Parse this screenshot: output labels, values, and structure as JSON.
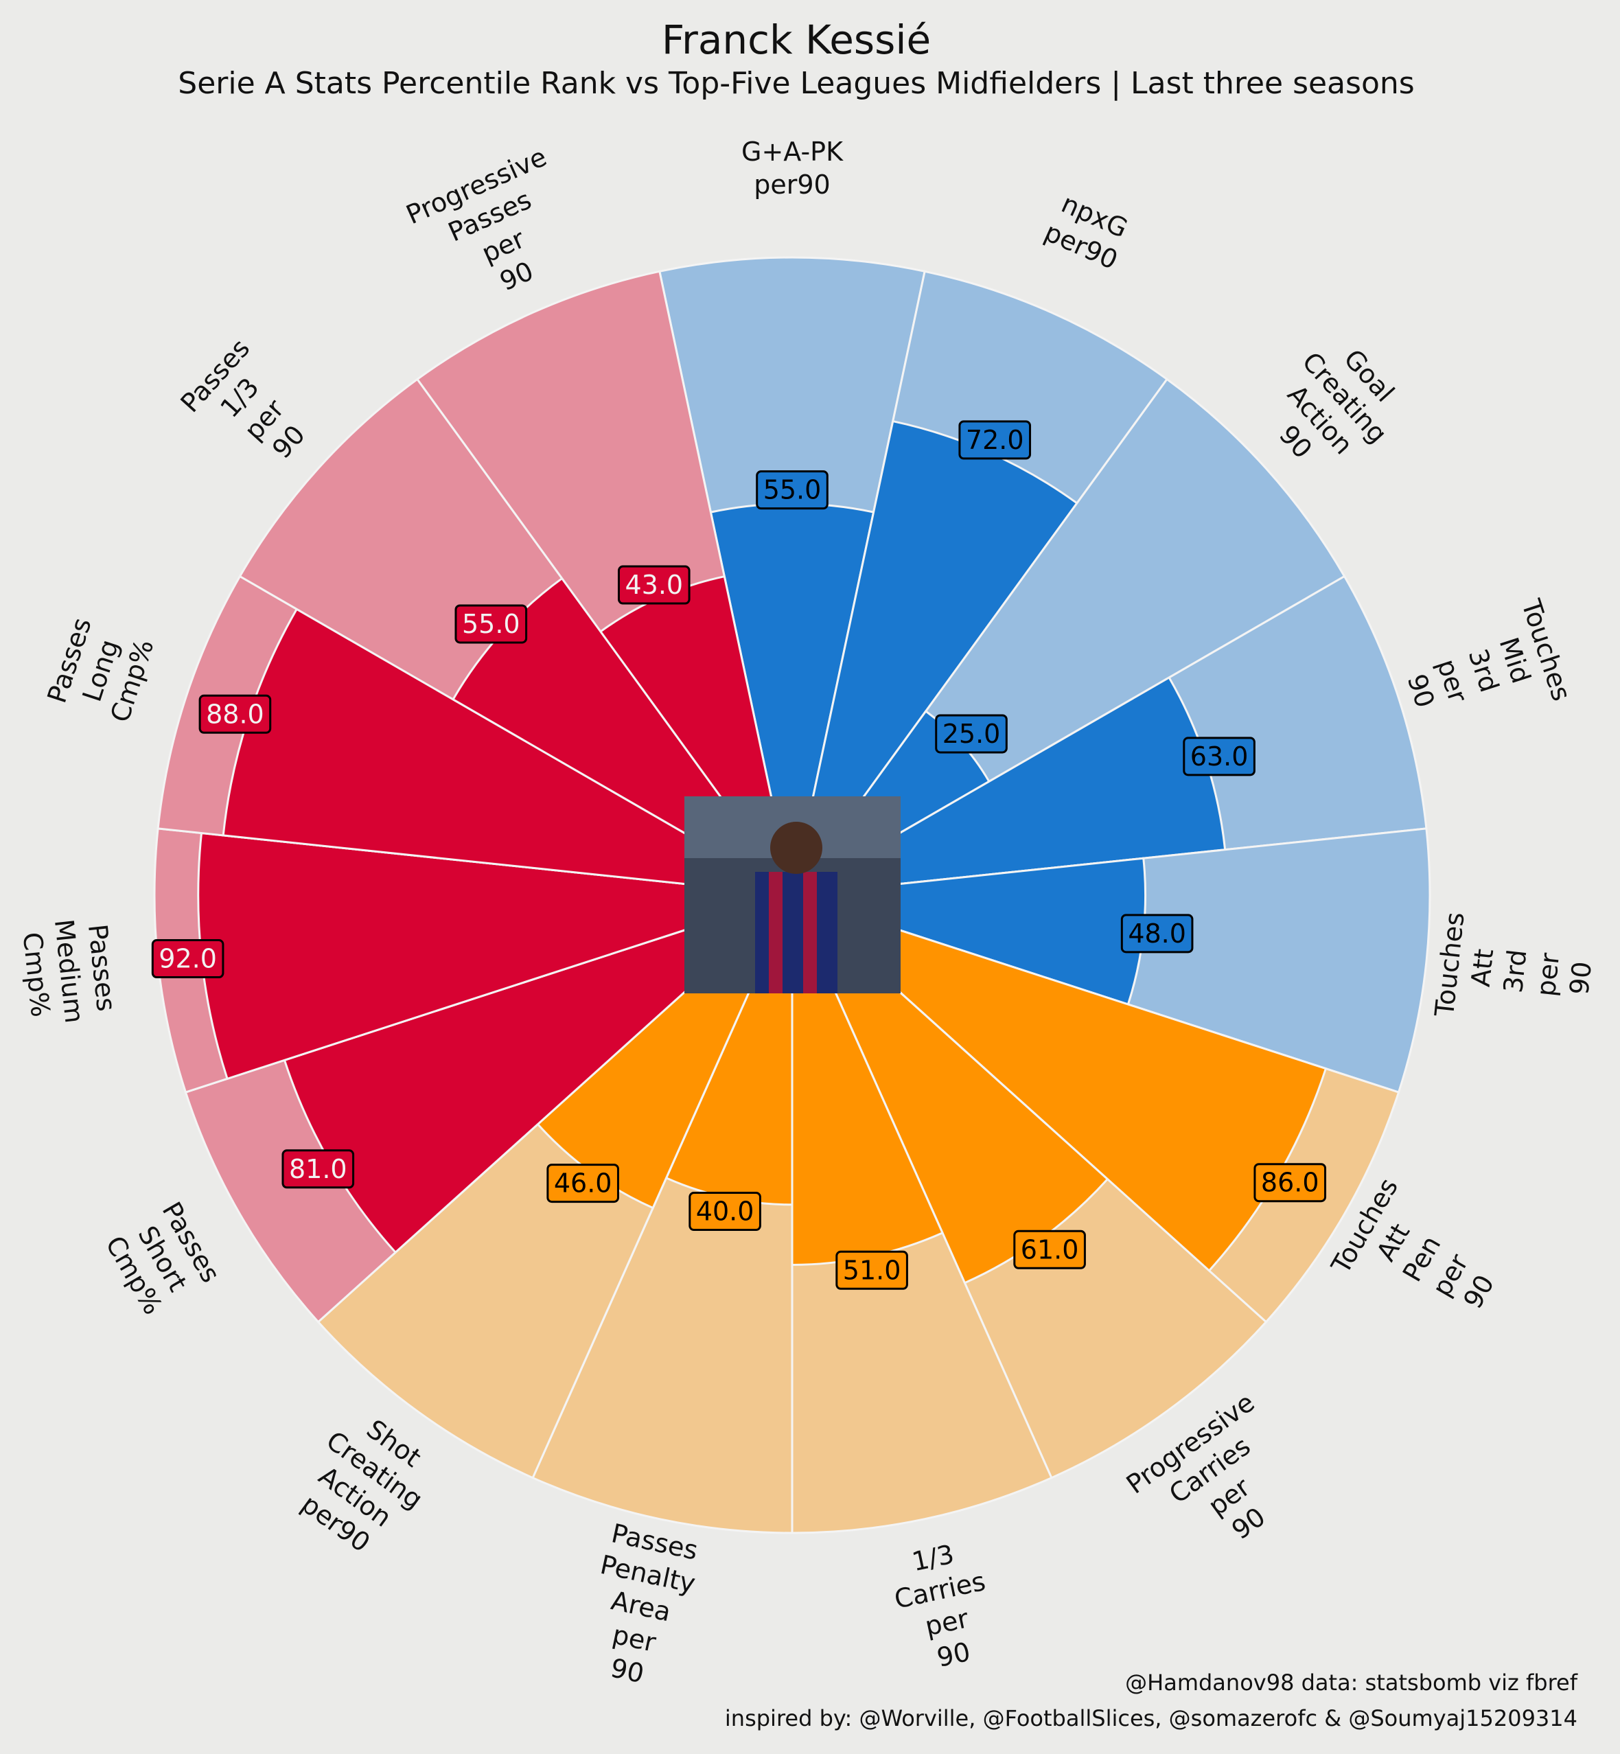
{
  "chart_data": {
    "type": "pizza",
    "title": "Franck Kessié",
    "subtitle": "Serie A Stats Percentile Rank vs Top-Five Leagues Midfielders | Last three seasons",
    "categories": [
      "G+A-PK\nper90",
      "npxG\nper90",
      "Goal\nCreating\nAction\n90",
      "Touches\nMid\n3rd\nper\n90",
      "Touches\nAtt\n3rd\nper\n90",
      "Touches\nAtt\nPen\nper\n90",
      "Progressive\nCarries\nper\n90",
      "1/3\nCarries\nper\n90",
      "Passes\nPenalty\nArea\nper\n90",
      "Shot\nCreating\nAction\nper90",
      "Passes\nShort\nCmp%",
      "Passes\nMedium\nCmp%",
      "Passes\nLong\nCmp%",
      "Passes\n1/3\nper\n90",
      "Progressive\nPasses\nper\n90"
    ],
    "values": [
      55,
      72,
      25,
      63,
      48,
      86,
      61,
      51,
      40,
      46,
      81,
      92,
      88,
      55,
      43
    ],
    "value_labels": [
      "55.0",
      "72.0",
      "25.0",
      "63.0",
      "48.0",
      "86.0",
      "61.0",
      "51.0",
      "40.0",
      "46.0",
      "81.0",
      "92.0",
      "88.0",
      "55.0",
      "43.0"
    ],
    "colors": [
      "#1a78cf",
      "#1a78cf",
      "#1a78cf",
      "#1a78cf",
      "#1a78cf",
      "#ff9300",
      "#ff9300",
      "#ff9300",
      "#ff9300",
      "#ff9300",
      "#d70232",
      "#d70232",
      "#d70232",
      "#d70232",
      "#d70232"
    ],
    "background_colors": [
      "#98bde0",
      "#98bde0",
      "#98bde0",
      "#98bde0",
      "#98bde0",
      "#f2c88f",
      "#f2c88f",
      "#f2c88f",
      "#f2c88f",
      "#f2c88f",
      "#e48e9d",
      "#e48e9d",
      "#e48e9d",
      "#e48e9d",
      "#e48e9d"
    ],
    "value_text_colors": [
      "#000000",
      "#000000",
      "#000000",
      "#000000",
      "#000000",
      "#000000",
      "#000000",
      "#000000",
      "#000000",
      "#000000",
      "#f2f2f2",
      "#f2f2f2",
      "#f2f2f2",
      "#f2f2f2",
      "#f2f2f2"
    ],
    "ylim": [
      0,
      100
    ],
    "credits": [
      "@Hamdanov98 data: statsbomb viz fbref",
      "inspired by: @Worville, @FootballSlices, @somazerofc & @Soumyaj15209314"
    ]
  }
}
